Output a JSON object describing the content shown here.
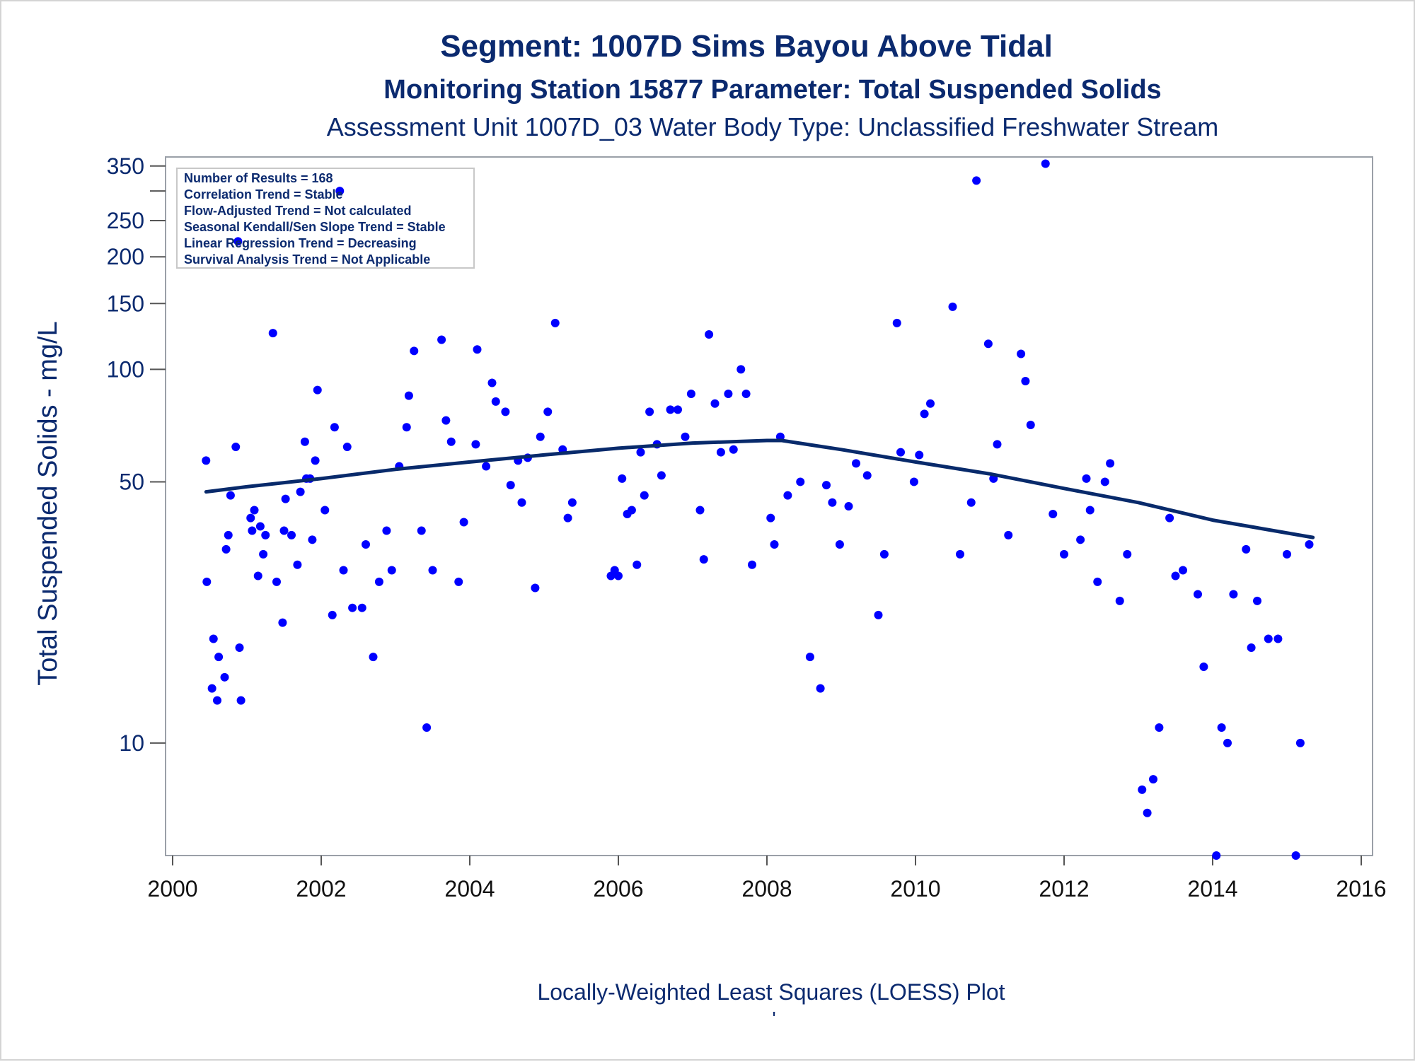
{
  "chart_data": {
    "type": "scatter",
    "title": "Segment: 1007D  Sims Bayou Above Tidal",
    "subtitle": "Monitoring Station 15877 Parameter: Total Suspended Solids",
    "subtitle2": "Assessment Unit 1007D_03   Water Body Type: Unclassified Freshwater Stream",
    "xlabel": "Locally-Weighted Least Squares (LOESS) Plot",
    "ylabel": "Total Suspended Solids - mg/L",
    "footnote_mark": "'",
    "xlim": [
      2000,
      2016
    ],
    "ylim": [
      5,
      370
    ],
    "yscale": "log",
    "x_ticks": [
      "2000",
      "2002",
      "2004",
      "2006",
      "2008",
      "2010",
      "2012",
      "2014",
      "2016"
    ],
    "y_ticks": [
      "10",
      "50",
      "100",
      "150",
      "200",
      "250",
      "350"
    ],
    "y_minor_ticks": [
      300
    ],
    "grid": false,
    "legend_placement": "top-left",
    "stats_box": [
      "Number of Results = 168",
      "Correlation Trend = Stable",
      "Flow-Adjusted Trend = Not calculated",
      "Seasonal Kendall/Sen Slope Trend = Stable",
      "Linear Regression Trend = Decreasing",
      "Survival Analysis Trend = Not Applicable"
    ],
    "colors": {
      "points": "#0000ff",
      "loess": "#082a6b",
      "text": "#0b2a6f"
    },
    "points": [
      [
        2000.45,
        57
      ],
      [
        2000.46,
        27
      ],
      [
        2000.55,
        19
      ],
      [
        2000.53,
        14
      ],
      [
        2000.6,
        13
      ],
      [
        2000.62,
        17
      ],
      [
        2000.7,
        15
      ],
      [
        2000.72,
        33
      ],
      [
        2000.75,
        36
      ],
      [
        2000.78,
        46
      ],
      [
        2000.85,
        62
      ],
      [
        2000.88,
        220
      ],
      [
        2000.9,
        18
      ],
      [
        2000.92,
        13
      ],
      [
        2001.05,
        40
      ],
      [
        2001.07,
        37
      ],
      [
        2001.1,
        42
      ],
      [
        2001.15,
        28
      ],
      [
        2001.18,
        38
      ],
      [
        2001.22,
        32
      ],
      [
        2001.25,
        36
      ],
      [
        2001.35,
        125
      ],
      [
        2001.4,
        27
      ],
      [
        2001.48,
        21
      ],
      [
        2001.5,
        37
      ],
      [
        2001.52,
        45
      ],
      [
        2001.6,
        36
      ],
      [
        2001.68,
        30
      ],
      [
        2001.72,
        47
      ],
      [
        2001.78,
        64
      ],
      [
        2001.8,
        51
      ],
      [
        2001.85,
        51
      ],
      [
        2001.88,
        35
      ],
      [
        2001.92,
        57
      ],
      [
        2001.95,
        88
      ],
      [
        2002.05,
        42
      ],
      [
        2002.15,
        22
      ],
      [
        2002.18,
        70
      ],
      [
        2002.25,
        300
      ],
      [
        2002.3,
        29
      ],
      [
        2002.35,
        62
      ],
      [
        2002.42,
        23
      ],
      [
        2002.55,
        23
      ],
      [
        2002.6,
        34
      ],
      [
        2002.7,
        17
      ],
      [
        2002.78,
        27
      ],
      [
        2002.88,
        37
      ],
      [
        2002.95,
        29
      ],
      [
        2003.05,
        55
      ],
      [
        2003.15,
        70
      ],
      [
        2003.18,
        85
      ],
      [
        2003.25,
        112
      ],
      [
        2003.35,
        37
      ],
      [
        2003.42,
        11
      ],
      [
        2003.5,
        29
      ],
      [
        2003.62,
        120
      ],
      [
        2003.68,
        73
      ],
      [
        2003.75,
        64
      ],
      [
        2003.85,
        27
      ],
      [
        2003.92,
        39
      ],
      [
        2004.08,
        63
      ],
      [
        2004.1,
        113
      ],
      [
        2004.22,
        55
      ],
      [
        2004.3,
        92
      ],
      [
        2004.35,
        82
      ],
      [
        2004.48,
        77
      ],
      [
        2004.55,
        49
      ],
      [
        2004.65,
        57
      ],
      [
        2004.7,
        44
      ],
      [
        2004.78,
        58
      ],
      [
        2004.88,
        26
      ],
      [
        2004.95,
        66
      ],
      [
        2005.05,
        77
      ],
      [
        2005.15,
        133
      ],
      [
        2005.25,
        61
      ],
      [
        2005.32,
        40
      ],
      [
        2005.38,
        44
      ],
      [
        2005.9,
        28
      ],
      [
        2005.95,
        29
      ],
      [
        2006.0,
        28
      ],
      [
        2006.05,
        51
      ],
      [
        2006.12,
        41
      ],
      [
        2006.18,
        42
      ],
      [
        2006.25,
        30
      ],
      [
        2006.3,
        60
      ],
      [
        2006.35,
        46
      ],
      [
        2006.42,
        77
      ],
      [
        2006.52,
        63
      ],
      [
        2006.58,
        52
      ],
      [
        2006.7,
        78
      ],
      [
        2006.8,
        78
      ],
      [
        2006.9,
        66
      ],
      [
        2006.98,
        86
      ],
      [
        2007.1,
        42
      ],
      [
        2007.15,
        31
      ],
      [
        2007.22,
        124
      ],
      [
        2007.3,
        81
      ],
      [
        2007.38,
        60
      ],
      [
        2007.48,
        86
      ],
      [
        2007.55,
        61
      ],
      [
        2007.65,
        100
      ],
      [
        2007.72,
        86
      ],
      [
        2007.8,
        30
      ],
      [
        2008.05,
        40
      ],
      [
        2008.1,
        34
      ],
      [
        2008.18,
        66
      ],
      [
        2008.28,
        46
      ],
      [
        2008.45,
        50
      ],
      [
        2008.58,
        17
      ],
      [
        2008.72,
        14
      ],
      [
        2008.8,
        49
      ],
      [
        2008.88,
        44
      ],
      [
        2008.98,
        34
      ],
      [
        2009.1,
        43
      ],
      [
        2009.2,
        56
      ],
      [
        2009.35,
        52
      ],
      [
        2009.5,
        22
      ],
      [
        2009.58,
        32
      ],
      [
        2009.75,
        133
      ],
      [
        2009.8,
        60
      ],
      [
        2009.98,
        50
      ],
      [
        2010.05,
        59
      ],
      [
        2010.12,
        76
      ],
      [
        2010.2,
        81
      ],
      [
        2010.5,
        147
      ],
      [
        2010.6,
        32
      ],
      [
        2010.75,
        44
      ],
      [
        2010.82,
        320
      ],
      [
        2010.98,
        117
      ],
      [
        2011.05,
        51
      ],
      [
        2011.1,
        63
      ],
      [
        2011.25,
        36
      ],
      [
        2011.42,
        110
      ],
      [
        2011.48,
        93
      ],
      [
        2011.55,
        71
      ],
      [
        2011.75,
        355
      ],
      [
        2011.85,
        41
      ],
      [
        2012.0,
        32
      ],
      [
        2012.22,
        35
      ],
      [
        2012.3,
        51
      ],
      [
        2012.35,
        42
      ],
      [
        2012.45,
        27
      ],
      [
        2012.55,
        50
      ],
      [
        2012.62,
        56
      ],
      [
        2012.75,
        24
      ],
      [
        2012.85,
        32
      ],
      [
        2013.05,
        7.5
      ],
      [
        2013.12,
        6.5
      ],
      [
        2013.2,
        8
      ],
      [
        2013.28,
        11
      ],
      [
        2013.42,
        40
      ],
      [
        2013.5,
        28
      ],
      [
        2013.6,
        29
      ],
      [
        2013.8,
        25
      ],
      [
        2013.88,
        16
      ],
      [
        2014.05,
        5.0
      ],
      [
        2014.12,
        11
      ],
      [
        2014.2,
        10
      ],
      [
        2014.28,
        25
      ],
      [
        2014.45,
        33
      ],
      [
        2014.52,
        18
      ],
      [
        2014.6,
        24
      ],
      [
        2014.75,
        19
      ],
      [
        2014.88,
        19
      ],
      [
        2015.0,
        32
      ],
      [
        2015.12,
        5.0
      ],
      [
        2015.18,
        10
      ],
      [
        2015.3,
        34
      ]
    ],
    "loess": [
      [
        2000.45,
        47
      ],
      [
        2001.0,
        48.5
      ],
      [
        2002.0,
        51
      ],
      [
        2003.0,
        54
      ],
      [
        2004.0,
        56.5
      ],
      [
        2005.0,
        59
      ],
      [
        2006.0,
        61.5
      ],
      [
        2007.0,
        63.5
      ],
      [
        2008.0,
        64.5
      ],
      [
        2008.2,
        64.5
      ],
      [
        2009.0,
        61
      ],
      [
        2010.0,
        56.5
      ],
      [
        2011.0,
        52.5
      ],
      [
        2012.0,
        48
      ],
      [
        2013.0,
        44
      ],
      [
        2014.0,
        39.5
      ],
      [
        2015.35,
        35.5
      ]
    ]
  }
}
